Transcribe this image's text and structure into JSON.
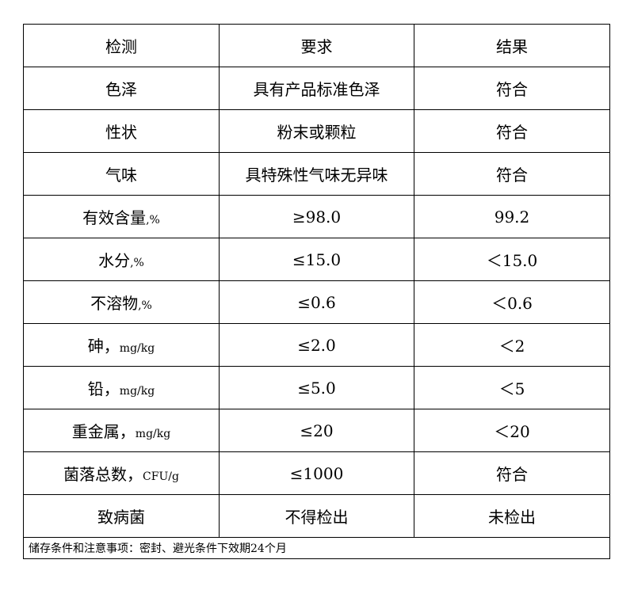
{
  "table": {
    "headers": [
      "检测",
      "要求",
      "结果"
    ],
    "rows": [
      {
        "item": "色泽",
        "unit": "",
        "requirement": "具有产品标准色泽",
        "result": "符合"
      },
      {
        "item": "性状",
        "unit": "",
        "requirement": "粉末或颗粒",
        "result": "符合"
      },
      {
        "item": "气味",
        "unit": "",
        "requirement": "具特殊性气味无异味",
        "result": "符合"
      },
      {
        "item": "有效含量",
        "unit": ",%",
        "requirement": "≥98.0",
        "result": "99.2"
      },
      {
        "item": "水分",
        "unit": ",%",
        "requirement": "≤15.0",
        "result": "＜15.0"
      },
      {
        "item": "不溶物",
        "unit": ",%",
        "requirement": "≤0.6",
        "result": "＜0.6"
      },
      {
        "item": "砷，",
        "unit": "mg/kg",
        "requirement": "≤2.0",
        "result": "＜2"
      },
      {
        "item": "铅，",
        "unit": "mg/kg",
        "requirement": "≤5.0",
        "result": "＜5"
      },
      {
        "item": "重金属，",
        "unit": "mg/kg",
        "requirement": "≤20",
        "result": "＜20"
      },
      {
        "item": "菌落总数，",
        "unit": "CFU/g",
        "requirement": "≤1000",
        "result": "符合"
      },
      {
        "item": "致病菌",
        "unit": "",
        "requirement": "不得检出",
        "result": "未检出"
      }
    ],
    "note": "储存条件和注意事项：密封、避光条件下效期24个月"
  }
}
